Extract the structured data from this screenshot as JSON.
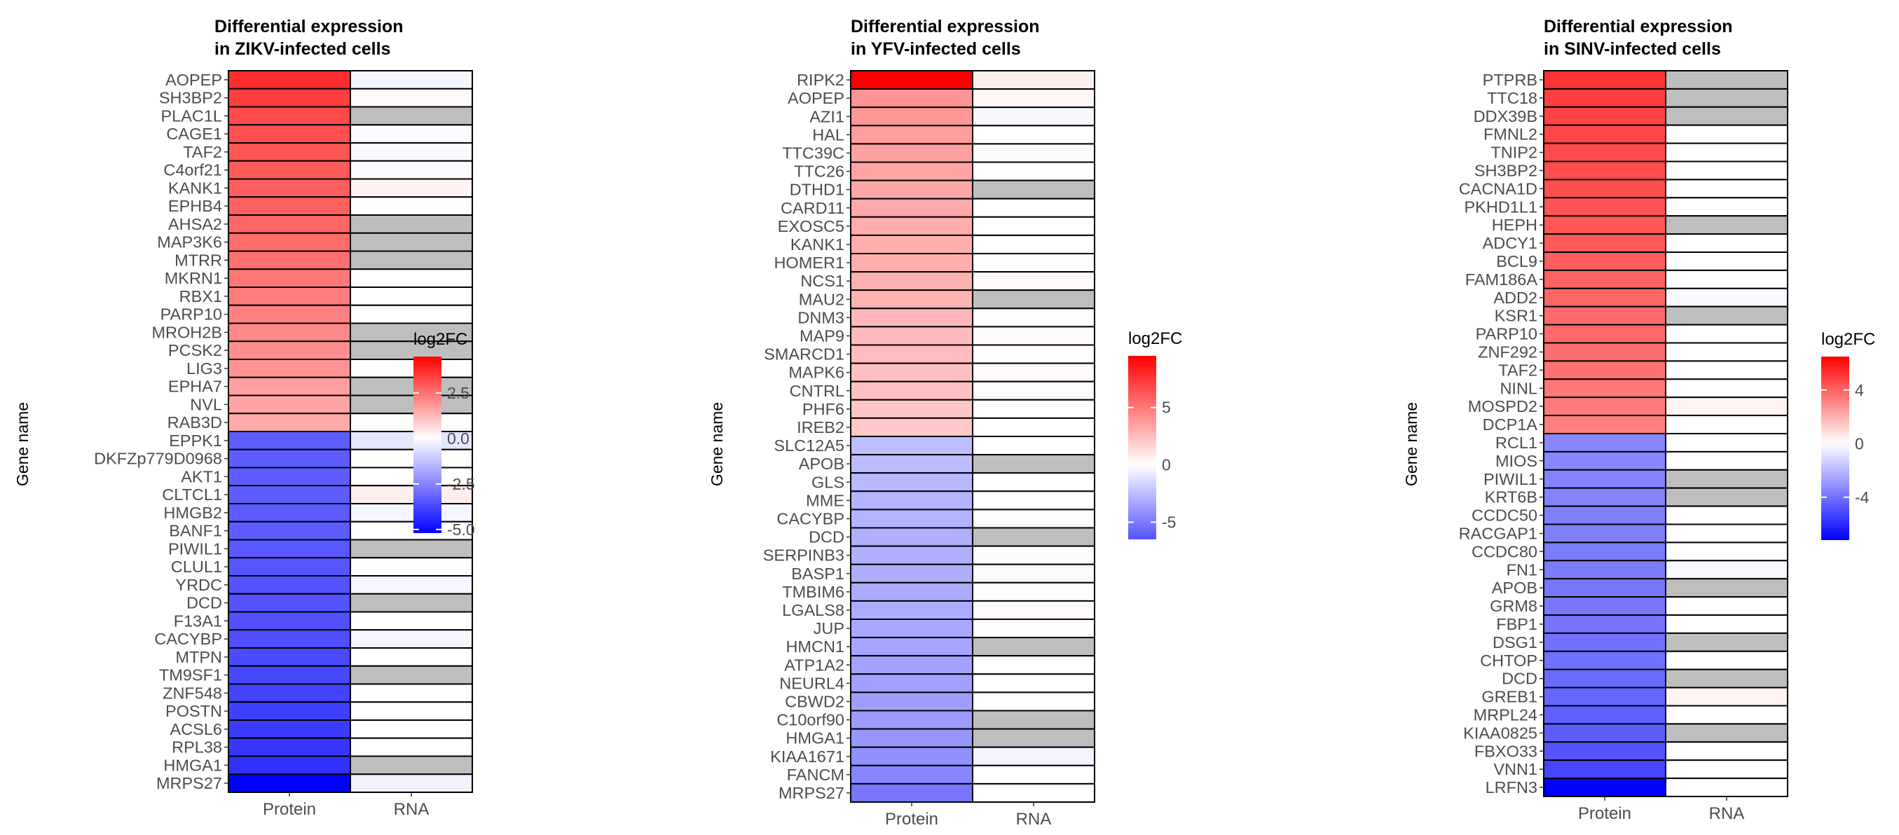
{
  "colors": {
    "neg": "#0000ff",
    "mid": "#ffffff",
    "pos": "#ff0000",
    "na": "#bebebe",
    "border": "#000000",
    "text": "#4d4d4d"
  },
  "chart_data": [
    {
      "type": "heatmap",
      "title": "Differential expression\nin ZIKV-infected cells",
      "ylabel": "Gene name",
      "columns": [
        "Protein",
        "RNA"
      ],
      "legend_title": "log2FC",
      "legend_ticks": [
        2.5,
        0.0,
        -2.5,
        -5.0
      ],
      "legend_tick_labels": [
        "2.5",
        "0.0",
        "-2.5",
        "-5.0"
      ],
      "scale": {
        "min": -5.2,
        "mid": 0,
        "max": 4.5,
        "lo_end": -5.2,
        "hi_end": 4.5
      },
      "genes": [
        "AOPEP",
        "SH3BP2",
        "PLAC1L",
        "CAGE1",
        "TAF2",
        "C4orf21",
        "KANK1",
        "EPHB4",
        "AHSA2",
        "MAP3K6",
        "MTRR",
        "MKRN1",
        "RBX1",
        "PARP10",
        "MROH2B",
        "PCSK2",
        "LIG3",
        "EPHA7",
        "NVL",
        "RAB3D",
        "EPPK1",
        "DKFZp779D0968",
        "AKT1",
        "CLTCL1",
        "HMGB2",
        "BANF1",
        "PIWIL1",
        "CLUL1",
        "YRDC",
        "DCD",
        "F13A1",
        "CACYBP",
        "MTPN",
        "TM9SF1",
        "ZNF548",
        "POSTN",
        "ACSL6",
        "RPL38",
        "HMGA1",
        "MRPS27"
      ],
      "protein": [
        3.7,
        3.4,
        3.2,
        3.1,
        3.0,
        2.9,
        2.85,
        2.8,
        2.7,
        2.6,
        2.55,
        2.4,
        2.3,
        2.2,
        2.1,
        2.0,
        1.9,
        1.7,
        1.6,
        1.5,
        -3.3,
        -3.3,
        -3.3,
        -3.3,
        -3.35,
        -3.35,
        -3.4,
        -3.45,
        -3.5,
        -3.5,
        -3.55,
        -3.6,
        -3.7,
        -3.75,
        -3.85,
        -3.9,
        -4.0,
        -4.1,
        -4.2,
        -5.2
      ],
      "rna": [
        -0.2,
        0.1,
        null,
        -0.1,
        -0.15,
        -0.1,
        0.2,
        0.0,
        null,
        null,
        null,
        0.0,
        0.0,
        0.0,
        null,
        null,
        0.05,
        null,
        null,
        0.05,
        -0.5,
        0.0,
        0.0,
        0.3,
        -0.2,
        0.0,
        null,
        -0.05,
        -0.2,
        null,
        0.0,
        -0.2,
        0.0,
        null,
        0.0,
        0.0,
        0.0,
        0.0,
        null,
        -0.3
      ]
    },
    {
      "type": "heatmap",
      "title": "Differential expression\nin YFV-infected cells",
      "ylabel": "Gene name",
      "columns": [
        "Protein",
        "RNA"
      ],
      "legend_title": "log2FC",
      "legend_ticks": [
        5,
        0,
        -5
      ],
      "legend_tick_labels": [
        "5",
        "0",
        "-5"
      ],
      "scale": {
        "min": -9.7,
        "mid": 0,
        "max": 9.5,
        "lo_end": -6.5,
        "hi_end": 9.5
      },
      "genes": [
        "RIPK2",
        "AOPEP",
        "AZI1",
        "HAL",
        "TTC39C",
        "TTC26",
        "DTHD1",
        "CARD11",
        "EXOSC5",
        "KANK1",
        "HOMER1",
        "NCS1",
        "MAU2",
        "DNM3",
        "MAP9",
        "SMARCD1",
        "MAPK6",
        "CNTRL",
        "PHF6",
        "IREB2",
        "SLC12A5",
        "APOB",
        "GLS",
        "MME",
        "CACYBP",
        "DCD",
        "SERPINB3",
        "BASP1",
        "TMBIM6",
        "LGALS8",
        "JUP",
        "HMCN1",
        "ATP1A2",
        "NEURL4",
        "CBWD2",
        "C10orf90",
        "HMGA1",
        "KIAA1671",
        "FANCM",
        "MRPS27"
      ],
      "protein": [
        9.5,
        4.0,
        3.9,
        3.6,
        3.5,
        3.4,
        3.3,
        3.2,
        3.1,
        3.0,
        3.0,
        2.9,
        2.8,
        2.7,
        2.6,
        2.5,
        2.4,
        2.3,
        2.2,
        2.1,
        -2.5,
        -2.6,
        -2.7,
        -2.8,
        -2.9,
        -3.0,
        -3.0,
        -3.1,
        -3.2,
        -3.2,
        -3.3,
        -3.4,
        -3.5,
        -3.6,
        -3.7,
        -3.8,
        -4.0,
        -4.2,
        -4.6,
        -5.2
      ],
      "rna": [
        0.6,
        0.3,
        -0.3,
        0.0,
        -0.1,
        0.0,
        null,
        0.0,
        0.0,
        0.0,
        0.1,
        0.2,
        null,
        0.1,
        0.15,
        0.1,
        0.15,
        0.1,
        0.0,
        0.0,
        0.0,
        null,
        0.0,
        0.0,
        0.1,
        null,
        -0.1,
        0.2,
        0.1,
        0.2,
        0.0,
        null,
        0.0,
        0.0,
        0.0,
        null,
        null,
        -0.4,
        0.0,
        0.0
      ]
    },
    {
      "type": "heatmap",
      "title": "Differential expression\nin SINV-infected cells",
      "ylabel": "Gene name",
      "columns": [
        "Protein",
        "RNA"
      ],
      "legend_title": "log2FC",
      "legend_ticks": [
        4,
        0,
        -4
      ],
      "legend_tick_labels": [
        "4",
        "0",
        "-4"
      ],
      "scale": {
        "min": -7.2,
        "mid": 0,
        "max": 6.5,
        "lo_end": -7.2,
        "hi_end": 6.5
      },
      "genes": [
        "PTPRB",
        "TTC18",
        "DDX39B",
        "FMNL2",
        "TNIP2",
        "SH3BP2",
        "CACNA1D",
        "PKHD1L1",
        "HEPH",
        "ADCY1",
        "BCL9",
        "FAM186A",
        "ADD2",
        "KSR1",
        "PARP10",
        "ZNF292",
        "TAF2",
        "NINL",
        "MOSPD2",
        "DCP1A",
        "RCL1",
        "MIOS",
        "PIWIL1",
        "KRT6B",
        "CCDC50",
        "RACGAP1",
        "CCDC80",
        "FN1",
        "APOB",
        "GRM8",
        "FBP1",
        "DSG1",
        "CHTOP",
        "DCD",
        "GREB1",
        "MRPL24",
        "KIAA0825",
        "FBXO33",
        "VNN1",
        "LRFN3"
      ],
      "protein": [
        5.2,
        4.9,
        4.8,
        4.7,
        4.6,
        4.5,
        4.5,
        4.4,
        4.3,
        4.2,
        4.1,
        4.0,
        3.9,
        3.8,
        3.8,
        3.7,
        3.6,
        3.5,
        3.4,
        3.3,
        -3.4,
        -3.4,
        -3.5,
        -3.5,
        -3.6,
        -3.6,
        -3.7,
        -3.7,
        -3.8,
        -3.8,
        -3.9,
        -4.0,
        -4.0,
        -4.2,
        -4.3,
        -4.5,
        -4.6,
        -4.8,
        -5.2,
        -7.2
      ],
      "rna": [
        null,
        null,
        null,
        0.0,
        0.0,
        0.0,
        0.0,
        0.0,
        null,
        0.0,
        0.0,
        0.0,
        -0.2,
        null,
        0.0,
        0.0,
        0.0,
        0.0,
        0.3,
        0.0,
        0.0,
        0.0,
        null,
        null,
        0.0,
        0.0,
        0.0,
        -0.2,
        null,
        0.0,
        0.0,
        null,
        0.0,
        null,
        0.3,
        0.0,
        null,
        0.0,
        0.0,
        0.0
      ]
    }
  ]
}
